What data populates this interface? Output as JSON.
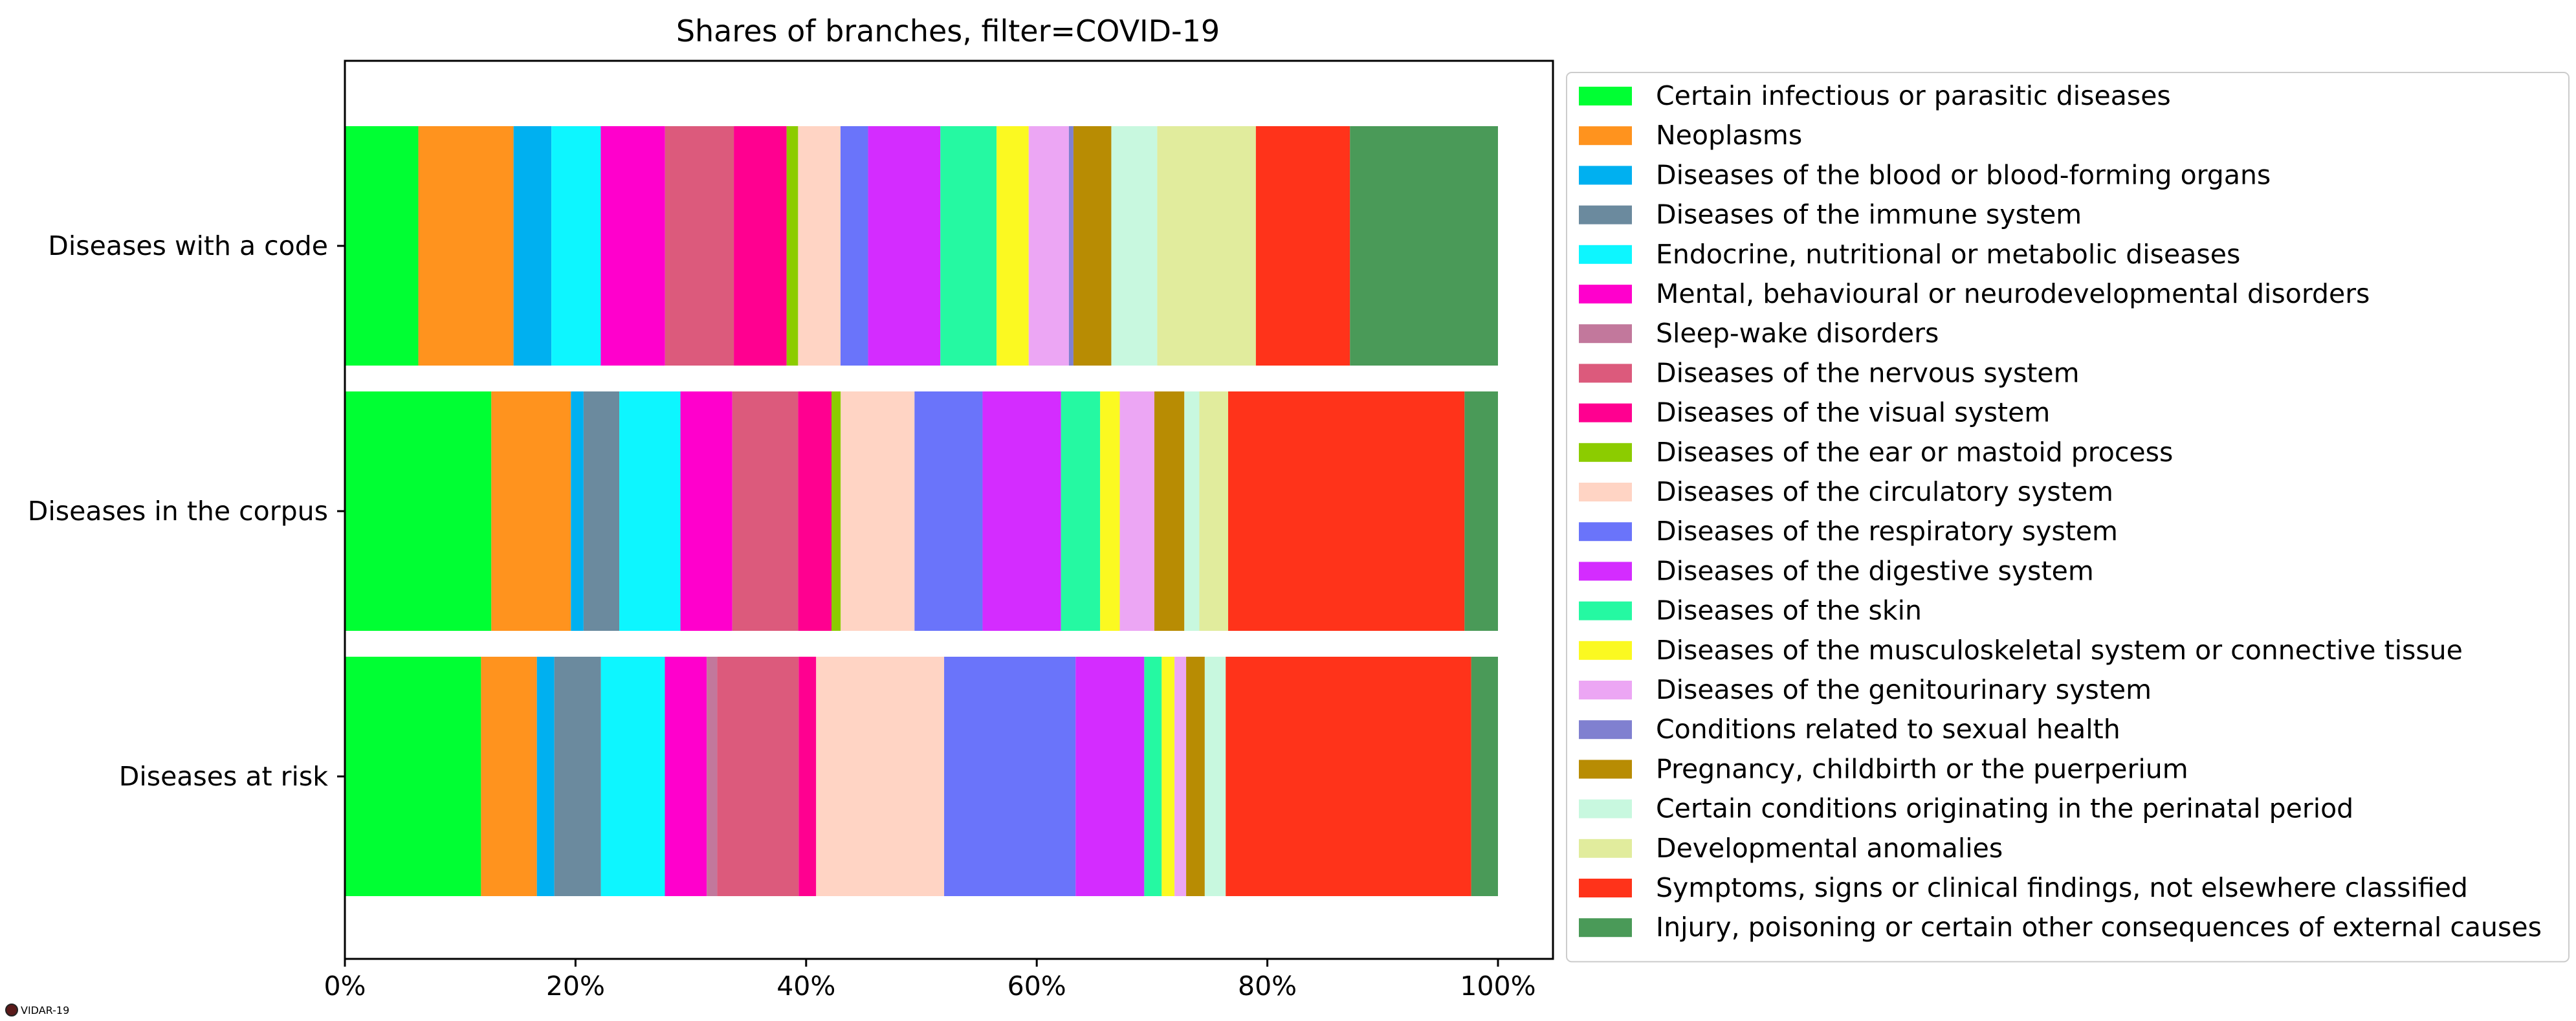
{
  "chart_data": {
    "type": "bar",
    "orientation": "horizontal",
    "stacked": true,
    "title": "Shares of branches, filter=COVID-19",
    "xlabel": "",
    "ylabel": "",
    "xlim": [
      0,
      105
    ],
    "xticks": [
      "0%",
      "20%",
      "40%",
      "60%",
      "80%",
      "100%"
    ],
    "xtick_values": [
      0,
      20,
      40,
      60,
      80,
      100
    ],
    "categories": [
      "Diseases with a code",
      "Diseases in the corpus",
      "Diseases at risk"
    ],
    "legend_position": "right",
    "grid": false,
    "series": [
      {
        "name": "Certain infectious or parasitic diseases",
        "color": "#00ff33",
        "values": [
          6.4,
          12.7,
          11.7
        ]
      },
      {
        "name": "Neoplasms",
        "color": "#ff931e",
        "values": [
          8.3,
          6.9,
          4.8
        ]
      },
      {
        "name": "Diseases of the blood or blood-forming organs",
        "color": "#00b0f0",
        "values": [
          3.3,
          1.1,
          1.5
        ]
      },
      {
        "name": "Diseases of the immune system",
        "color": "#6b8a9e",
        "values": [
          0.0,
          3.1,
          4.0
        ]
      },
      {
        "name": "Endocrine, nutritional or metabolic diseases",
        "color": "#0df6ff",
        "values": [
          4.3,
          5.3,
          5.5
        ]
      },
      {
        "name": "Mental, behavioural or neurodevelopmental disorders",
        "color": "#ff00cc",
        "values": [
          5.6,
          4.5,
          3.6
        ]
      },
      {
        "name": "Sleep-wake disorders",
        "color": "#c2789c",
        "values": [
          0.0,
          0.0,
          0.9
        ]
      },
      {
        "name": "Diseases of the nervous system",
        "color": "#dc5a7c",
        "values": [
          6.0,
          5.7,
          7.0
        ]
      },
      {
        "name": "Diseases of the visual system",
        "color": "#ff0090",
        "values": [
          4.6,
          2.9,
          1.5
        ]
      },
      {
        "name": "Diseases of the ear or mastoid process",
        "color": "#8ccc00",
        "values": [
          1.0,
          0.8,
          0.0
        ]
      },
      {
        "name": "Diseases of the circulatory system",
        "color": "#ffd4c4",
        "values": [
          3.7,
          6.4,
          11.0
        ]
      },
      {
        "name": "Diseases of the respiratory system",
        "color": "#6a74fa",
        "values": [
          2.4,
          5.9,
          11.3
        ]
      },
      {
        "name": "Diseases of the digestive system",
        "color": "#d42cff",
        "values": [
          6.3,
          6.8,
          5.9
        ]
      },
      {
        "name": "Diseases of the skin",
        "color": "#25f9a2",
        "values": [
          4.9,
          3.4,
          1.5
        ]
      },
      {
        "name": "Diseases of the musculoskeletal system or connective tissue",
        "color": "#fbf921",
        "values": [
          2.8,
          1.7,
          1.1
        ]
      },
      {
        "name": "Diseases of the genitourinary system",
        "color": "#eca6f4",
        "values": [
          3.5,
          3.0,
          1.0
        ]
      },
      {
        "name": "Conditions related to sexual health",
        "color": "#8080d0",
        "values": [
          0.4,
          0.0,
          0.0
        ]
      },
      {
        "name": "Pregnancy, childbirth or the puerperium",
        "color": "#b88c03",
        "values": [
          3.3,
          2.6,
          1.6
        ]
      },
      {
        "name": "Certain conditions originating in the perinatal period",
        "color": "#c8f8df",
        "values": [
          4.0,
          1.3,
          1.8
        ]
      },
      {
        "name": "Developmental anomalies",
        "color": "#e1ec9d",
        "values": [
          8.6,
          2.5,
          0.0
        ]
      },
      {
        "name": "Symptoms, signs or clinical findings, not elsewhere classified",
        "color": "#ff331a",
        "values": [
          8.2,
          20.5,
          21.1
        ]
      },
      {
        "name": "Injury, poisoning or certain other consequences of external causes",
        "color": "#4a9a58",
        "values": [
          12.9,
          2.9,
          2.3
        ]
      }
    ]
  },
  "watermark": {
    "text": "VIDAR-19"
  }
}
